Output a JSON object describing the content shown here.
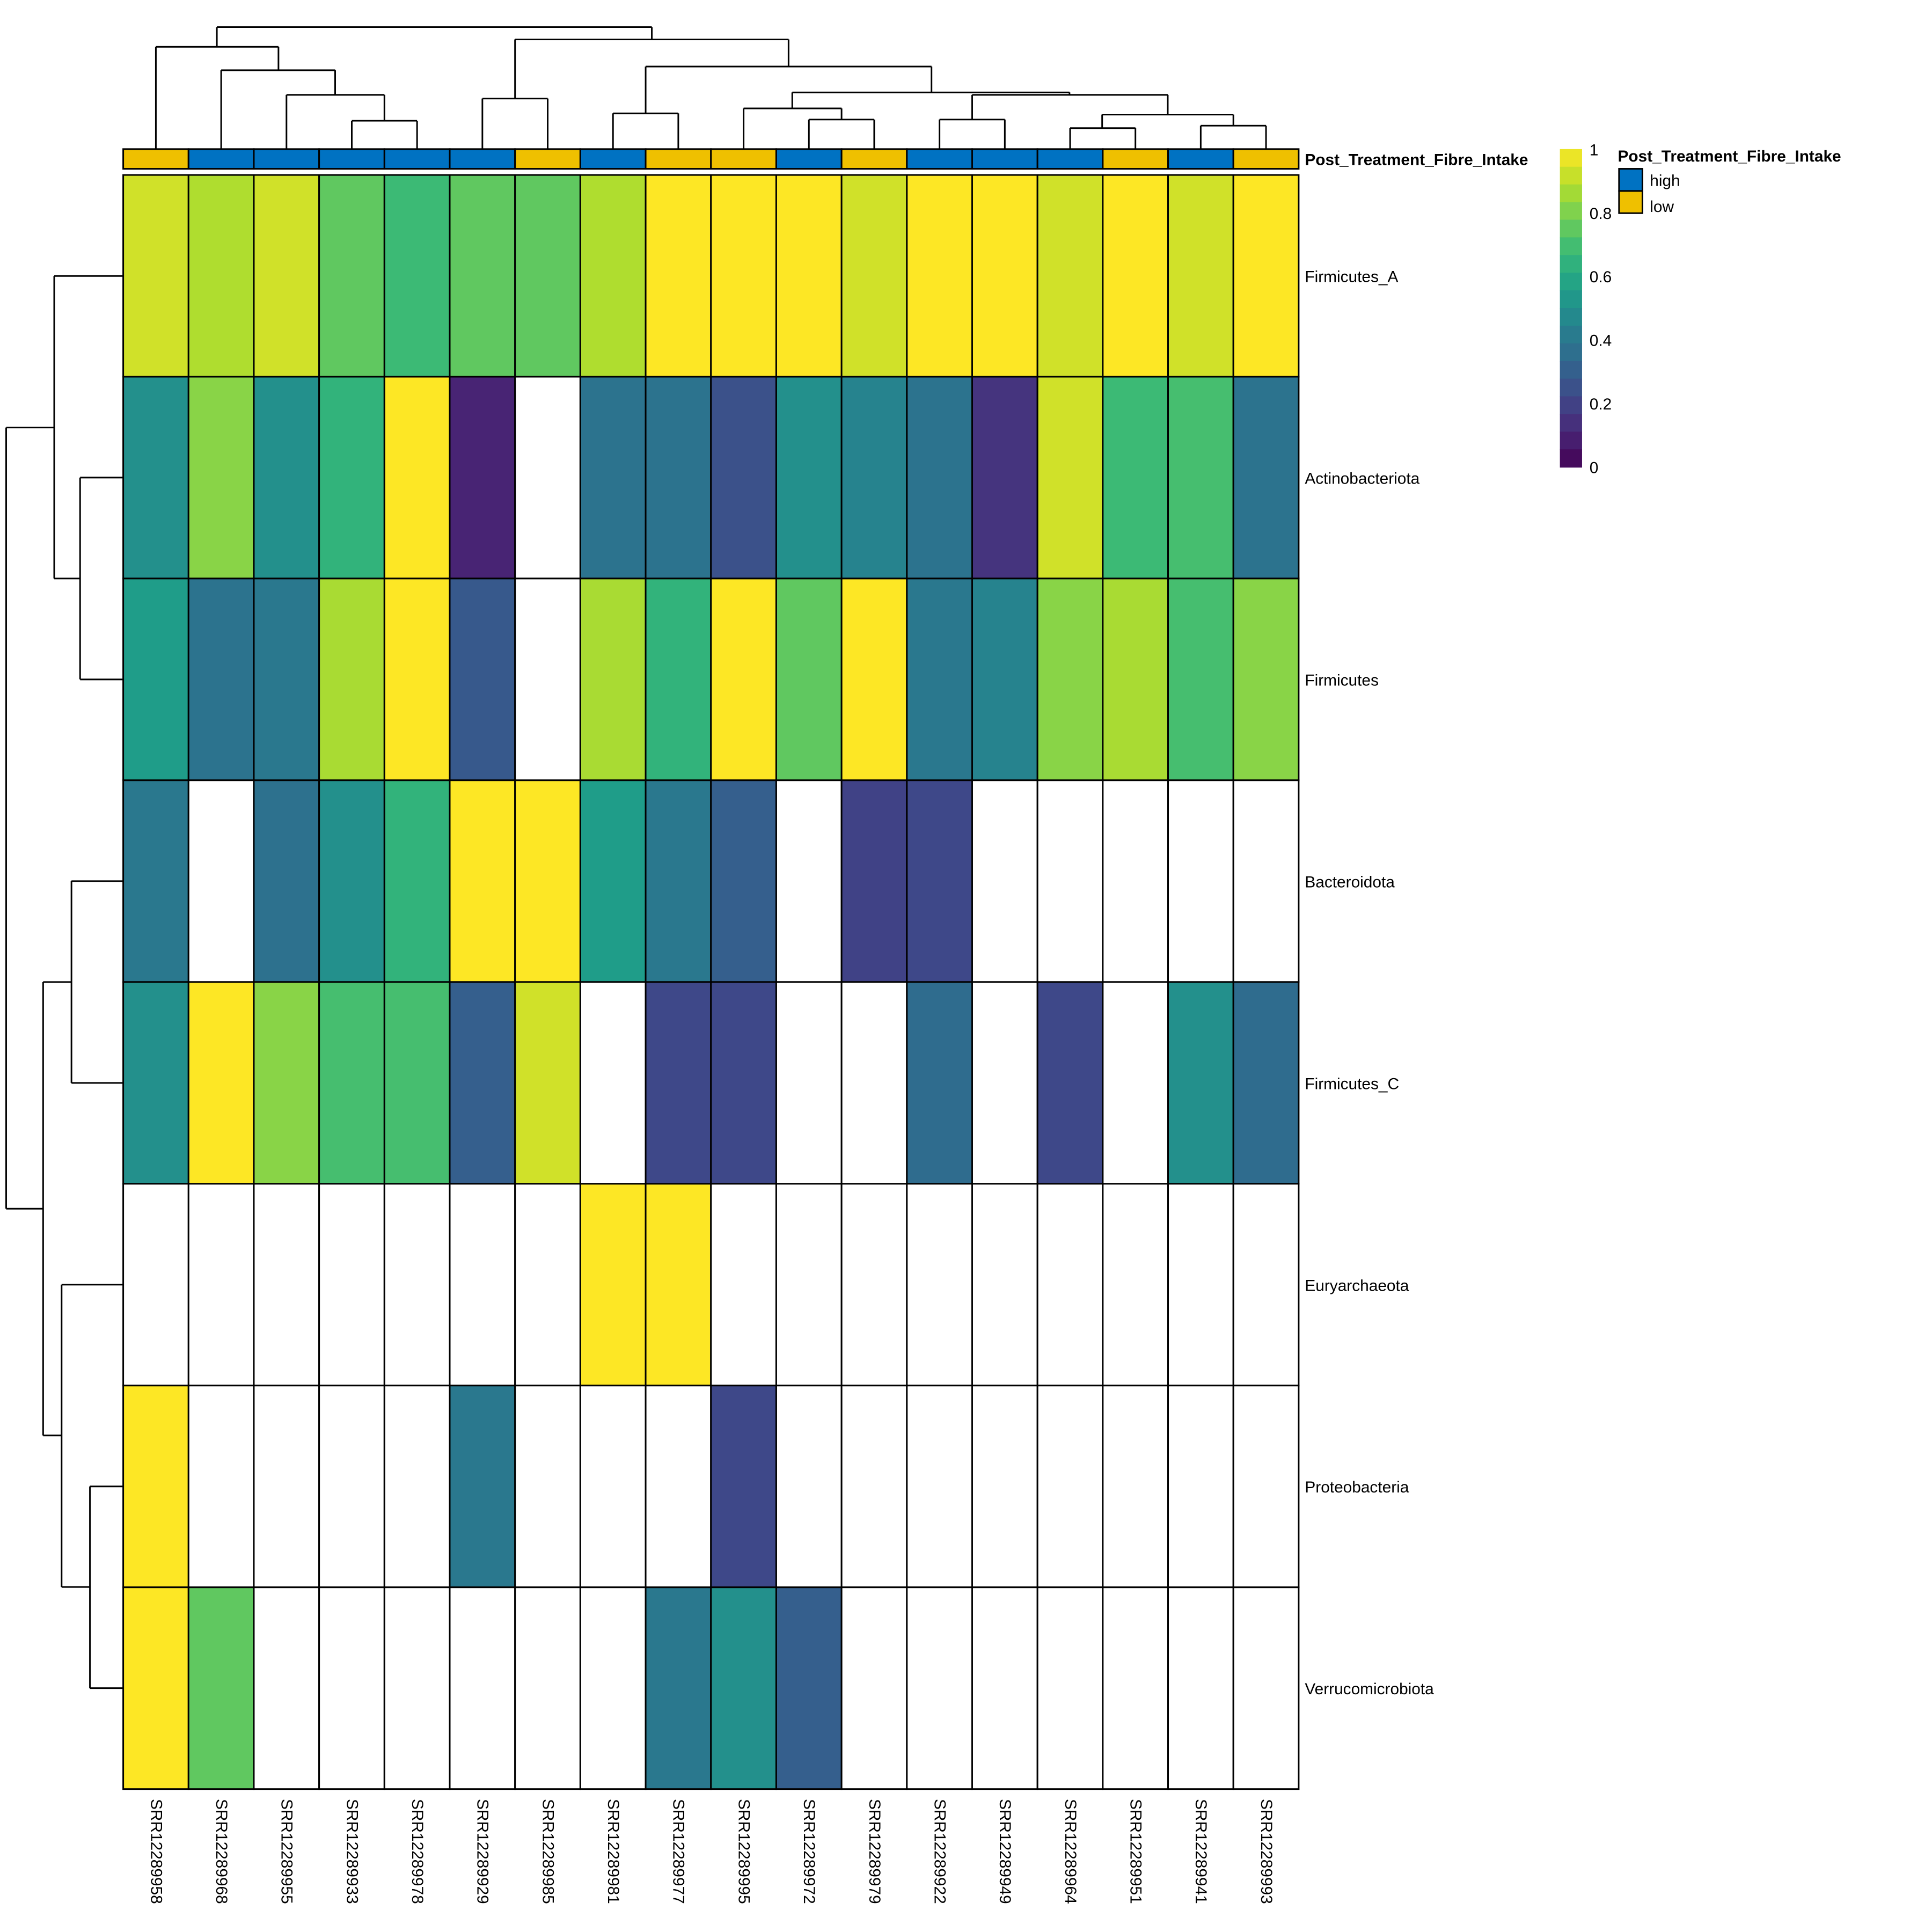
{
  "chart_data": {
    "type": "heatmap",
    "columns": [
      "SRR12289958",
      "SRR12289968",
      "SRR12289955",
      "SRR12289933",
      "SRR12289978",
      "SRR12289929",
      "SRR12289985",
      "SRR12289981",
      "SRR12289977",
      "SRR12289995",
      "SRR12289972",
      "SRR12289979",
      "SRR12289922",
      "SRR12289949",
      "SRR12289964",
      "SRR12289951",
      "SRR12289941",
      "SRR12289993"
    ],
    "rows": [
      "Firmicutes_A",
      "Actinobacteriota",
      "Firmicutes",
      "Bacteroidota",
      "Firmicutes_C",
      "Euryarchaeota",
      "Proteobacteria",
      "Verrucomicrobiota"
    ],
    "values": [
      [
        0.93,
        0.88,
        0.93,
        0.75,
        0.68,
        0.75,
        0.75,
        0.88,
        1,
        1,
        1,
        0.93,
        1,
        1,
        0.93,
        1,
        0.93,
        1
      ],
      [
        0.5,
        0.82,
        0.5,
        0.65,
        1,
        0.1,
        null,
        0.38,
        0.38,
        0.25,
        0.5,
        0.45,
        0.38,
        0.15,
        0.93,
        0.68,
        0.7,
        0.38
      ],
      [
        0.55,
        0.38,
        0.4,
        0.87,
        1,
        0.28,
        null,
        0.87,
        0.65,
        1,
        0.75,
        1,
        0.4,
        0.45,
        0.82,
        0.87,
        0.7,
        0.82
      ],
      [
        0.4,
        null,
        0.37,
        0.5,
        0.65,
        1,
        1,
        0.55,
        0.4,
        0.3,
        null,
        0.2,
        0.22,
        null,
        null,
        null,
        null,
        null
      ],
      [
        0.5,
        1,
        0.82,
        0.7,
        0.7,
        0.3,
        0.93,
        null,
        0.22,
        0.22,
        null,
        null,
        0.35,
        null,
        0.22,
        null,
        0.5,
        0.35
      ],
      [
        null,
        null,
        null,
        null,
        null,
        null,
        null,
        1,
        1,
        null,
        null,
        null,
        null,
        null,
        null,
        null,
        null,
        null
      ],
      [
        1,
        null,
        null,
        null,
        null,
        0.4,
        null,
        null,
        null,
        0.22,
        null,
        null,
        null,
        null,
        null,
        null,
        null,
        null
      ],
      [
        1,
        0.75,
        null,
        null,
        null,
        null,
        null,
        null,
        0.4,
        0.5,
        0.3,
        null,
        null,
        null,
        null,
        null,
        null,
        null
      ]
    ],
    "annotation": {
      "name": "Post_Treatment_Fibre_Intake",
      "values": [
        "low",
        "high",
        "high",
        "high",
        "high",
        "high",
        "low",
        "high",
        "low",
        "low",
        "high",
        "low",
        "high",
        "high",
        "high",
        "low",
        "high",
        "low"
      ],
      "levels": [
        "high",
        "low"
      ],
      "colors": {
        "high": "#0072C2",
        "low": "#EFC000"
      }
    },
    "colorbar": {
      "range": [
        0,
        1
      ],
      "ticks": [
        "0",
        "0.2",
        "0.4",
        "0.6",
        "0.8",
        "1"
      ]
    },
    "na_color": "#FFFFFF",
    "legend_placement": "right"
  }
}
